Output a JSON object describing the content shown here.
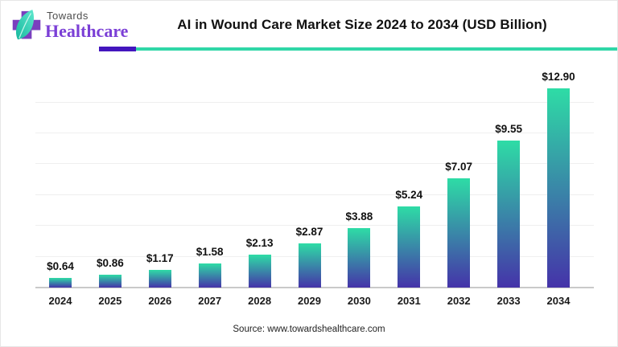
{
  "header": {
    "logo_line1": "Towards",
    "logo_line2": "Healthcare",
    "title": "AI in Wound Care Market Size 2024 to 2034 (USD Billion)"
  },
  "footer": {
    "source": "Source: www.towardshealthcare.com"
  },
  "colors": {
    "divider_purple": "#4316be",
    "divider_teal": "#2fd7a7",
    "bar_top": "#2edca6",
    "bar_bottom": "#4533a9",
    "logo_cross": "#7a3fbe",
    "logo_leaf_light": "#5fe8ce",
    "logo_leaf_dark": "#17b89e",
    "logo_healthcare_text": "#7b3fd6"
  },
  "chart_data": {
    "type": "bar",
    "title": "AI in Wound Care Market Size 2024 to 2034 (USD Billion)",
    "categories": [
      "2024",
      "2025",
      "2026",
      "2027",
      "2028",
      "2029",
      "2030",
      "2031",
      "2032",
      "2033",
      "2034"
    ],
    "values": [
      0.64,
      0.86,
      1.17,
      1.58,
      2.13,
      2.87,
      3.88,
      5.24,
      7.07,
      9.55,
      12.9
    ],
    "value_labels": [
      "$0.64",
      "$0.86",
      "$1.17",
      "$1.58",
      "$2.13",
      "$2.87",
      "$3.88",
      "$5.24",
      "$7.07",
      "$9.55",
      "$12.90"
    ],
    "xlabel": "",
    "ylabel": "USD Billion",
    "ylim": [
      0,
      13
    ],
    "grid": true,
    "grid_step": 2,
    "legend": false
  }
}
